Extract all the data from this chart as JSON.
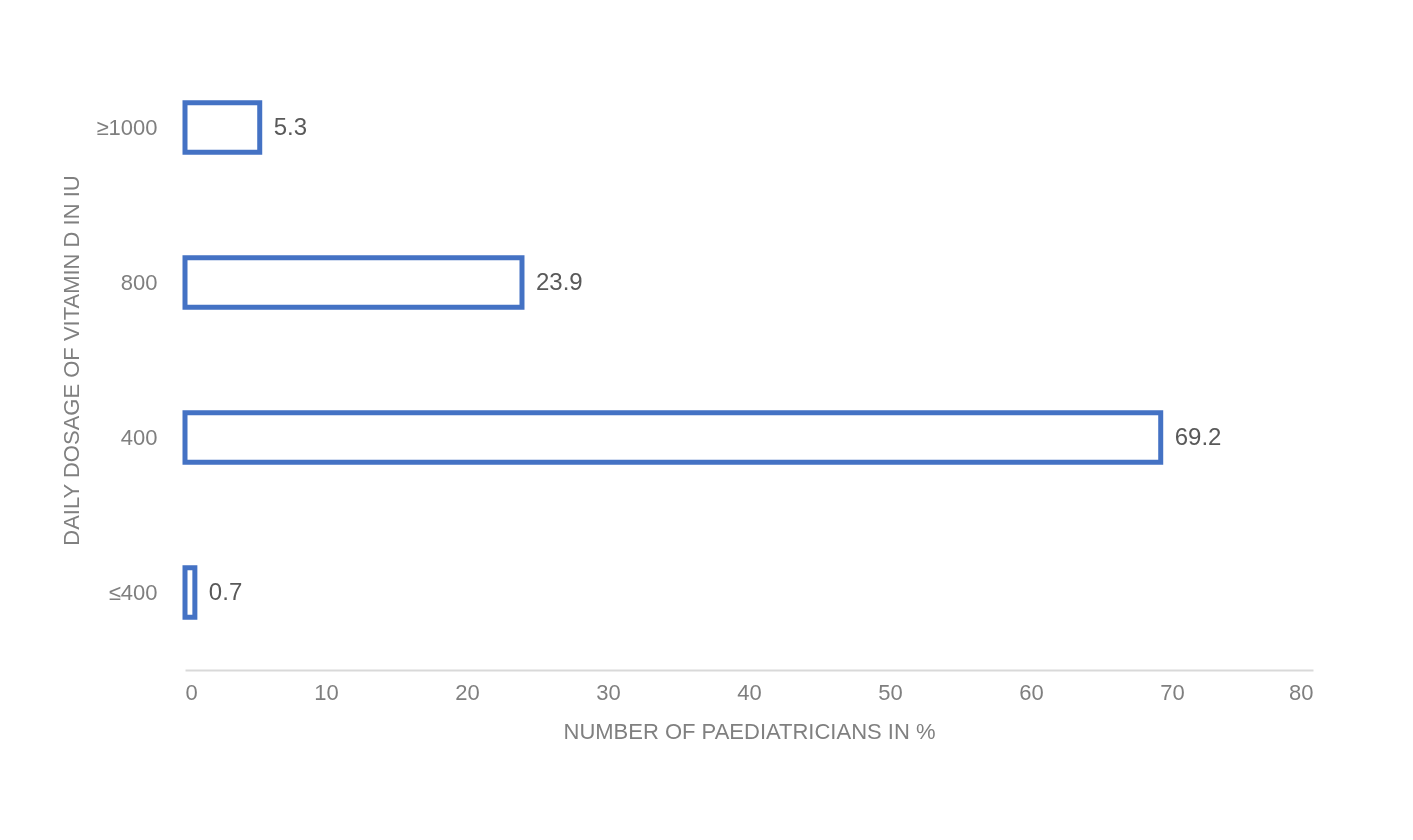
{
  "chart_data": {
    "type": "bar",
    "orientation": "horizontal",
    "xlabel": "NUMBER OF PAEDIATRICIANS IN %",
    "ylabel": "DAILY DOSAGE OF VITAMIN D IN IU",
    "categories": [
      "≥1000",
      "800",
      "400",
      "≤400"
    ],
    "values": [
      5.3,
      23.9,
      69.2,
      0.7
    ],
    "color": "#4472c4",
    "xlim": [
      0,
      80
    ],
    "xticks": [
      0,
      10,
      20,
      30,
      40,
      50,
      60,
      70,
      80
    ],
    "data_labels": true
  }
}
